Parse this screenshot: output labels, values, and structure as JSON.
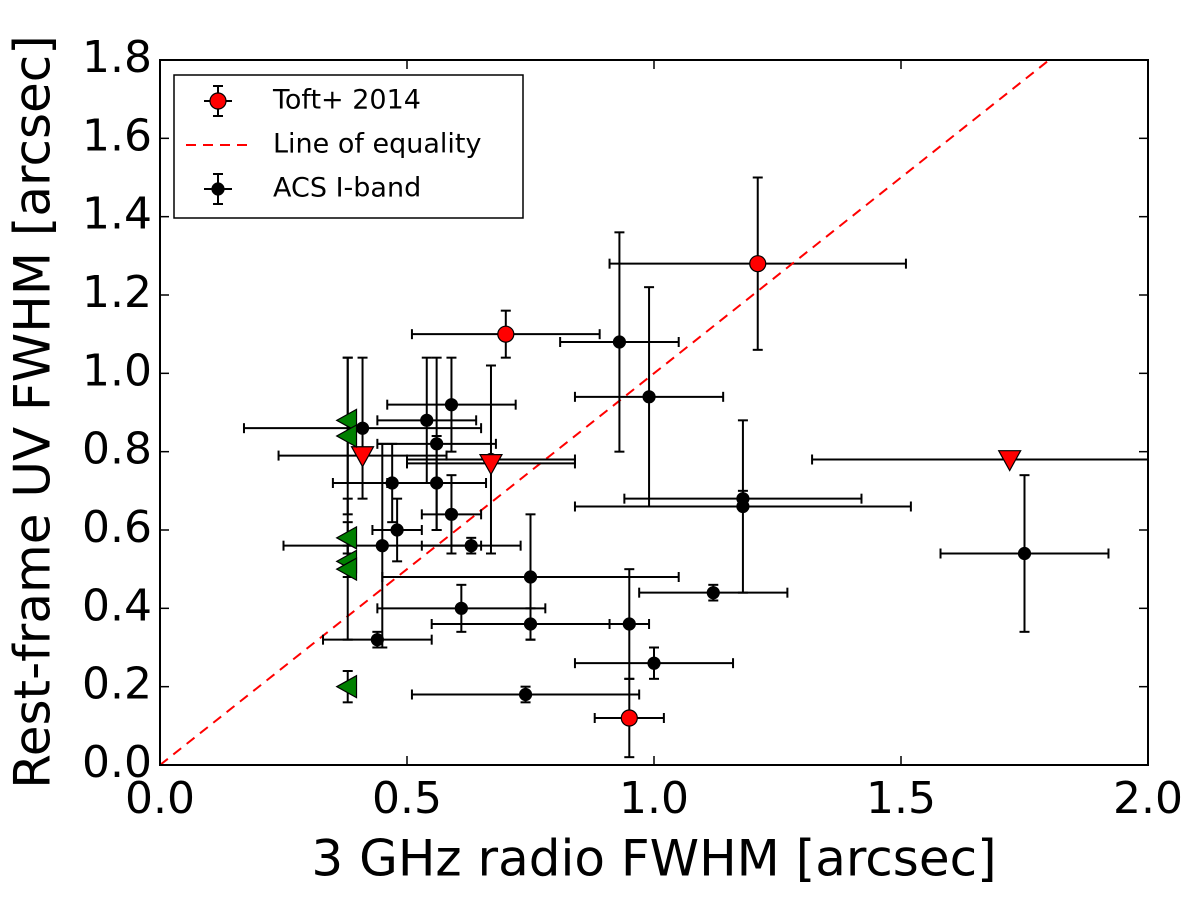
{
  "chart_data": {
    "type": "scatter",
    "xlabel": "3 GHz radio FWHM [arcsec]",
    "ylabel": "Rest-frame UV FWHM [arcsec]",
    "xlim": [
      0,
      2
    ],
    "ylim": [
      0,
      1.8
    ],
    "xticks": [
      {
        "value": 0,
        "label": "0.0"
      },
      0.5,
      {
        "value": 1,
        "label": "1.0"
      },
      1.5,
      {
        "value": 2,
        "label": "2.0"
      }
    ],
    "yticks": [
      {
        "value": 0,
        "label": "0.0"
      },
      0.2,
      0.4,
      0.6,
      0.8,
      {
        "value": 1,
        "label": "1.0"
      },
      1.2,
      1.4,
      1.6,
      1.8
    ],
    "legend": "upper left",
    "series": [
      {
        "name": "Toft+ 2014",
        "color": "#ff0000",
        "marker": "o",
        "x": [
          0.7,
          1.21,
          0.95
        ],
        "values": [
          1.1,
          1.28,
          0.12
        ],
        "xerr": [
          0.19,
          0.3,
          0.07
        ],
        "yerr": [
          0.06,
          0.22,
          0.1
        ]
      },
      {
        "name": "Line of equality",
        "color": "#ff0000",
        "marker": "dashed-line",
        "x": [
          0,
          1.8
        ],
        "values": [
          0,
          1.8
        ]
      },
      {
        "name": "ACS I-band",
        "color": "#000000",
        "marker": "o",
        "x": [
          0.41,
          0.54,
          0.59,
          0.56,
          0.47,
          0.56,
          0.59,
          0.48,
          0.45,
          0.63,
          0.75,
          0.61,
          0.75,
          0.44,
          0.74,
          0.95,
          1.0,
          1.12,
          0.93,
          0.99,
          1.18,
          1.18,
          1.75,
          0.67
        ],
        "values": [
          0.86,
          0.88,
          0.92,
          0.82,
          0.72,
          0.72,
          0.64,
          0.6,
          0.56,
          0.56,
          0.48,
          0.4,
          0.36,
          0.32,
          0.18,
          0.36,
          0.26,
          0.44,
          1.08,
          0.94,
          0.68,
          0.66,
          0.54,
          0.78
        ],
        "xerr": [
          0.24,
          0.1,
          0.13,
          0.12,
          0.12,
          0.1,
          0.06,
          0.05,
          0.2,
          0.1,
          0.3,
          0.17,
          0.2,
          0.11,
          0.23,
          0.04,
          0.16,
          0.15,
          0.12,
          0.15,
          0.24,
          0.34,
          0.17,
          0.17
        ],
        "yerr": [
          0.18,
          0.16,
          0.12,
          0.22,
          0.1,
          0.12,
          0.1,
          0.08,
          0.26,
          0.02,
          0.16,
          0.06,
          0.04,
          0.02,
          0.02,
          0.14,
          0.04,
          0.02,
          0.28,
          0.28,
          0.02,
          0.22,
          0.2,
          0.24
        ]
      },
      {
        "color": "#ff0000",
        "marker": "v",
        "x": [
          0.41,
          0.67,
          1.72
        ],
        "values": [
          0.79,
          0.77,
          0.78
        ],
        "xerr": [
          0.17,
          0.17,
          0.4
        ]
      },
      {
        "color": "#008000",
        "marker": "<",
        "x": [
          0.38,
          0.38,
          0.38,
          0.38,
          0.38,
          0.38
        ],
        "values": [
          0.88,
          0.84,
          0.58,
          0.52,
          0.5,
          0.2
        ],
        "yerr": [
          0.16,
          0.2,
          0.04,
          0.04,
          0.18,
          0.04
        ]
      }
    ]
  }
}
